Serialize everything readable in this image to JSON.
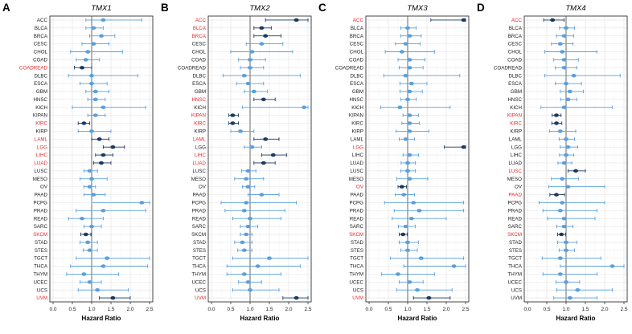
{
  "figure": {
    "xlabel": "Hazard Ratio",
    "x_ticks": [
      0.0,
      0.5,
      1.0,
      1.5,
      2.0,
      2.5
    ],
    "xlim": [
      0,
      2.5
    ],
    "ref_line": 1.0,
    "colors": {
      "nonsig_point": "#58a0e0",
      "sig_point": "#1c3a5e",
      "sig_label": "#e8262a",
      "label": "#1a1a1a",
      "grid_major": "#e4e4e4",
      "grid_minor": "#f3f3f3",
      "ref_line": "#5a5a5a",
      "frame": "#333333"
    }
  },
  "chart_data": [
    {
      "type": "forest",
      "panel": "A",
      "title": "TMX1",
      "xlabel": "Hazard Ratio",
      "xlim": [
        0,
        2.5
      ],
      "categories": [
        "ACC",
        "BLCA",
        "BRCA",
        "CESC",
        "CHOL",
        "COAD",
        "COADREAD",
        "DLBC",
        "ESCA",
        "GBM",
        "HNSC",
        "KICH",
        "KIPAN",
        "KIRC",
        "KIRP",
        "LAML",
        "LGG",
        "LIHC",
        "LUAD",
        "LUSC",
        "MESO",
        "OV",
        "PAAD",
        "PCPG",
        "PRAD",
        "READ",
        "SARC",
        "SKCM",
        "STAD",
        "STES",
        "TGCT",
        "THCA",
        "THYM",
        "UCEC",
        "UCS",
        "UVM"
      ],
      "estimates": [
        1.3,
        1.05,
        1.25,
        1.05,
        0.9,
        0.85,
        0.75,
        1.0,
        1.0,
        1.1,
        1.1,
        1.3,
        1.1,
        0.8,
        1.0,
        1.2,
        1.55,
        1.3,
        1.25,
        0.95,
        1.0,
        0.95,
        1.05,
        2.3,
        1.3,
        0.75,
        1.0,
        0.85,
        0.9,
        0.95,
        1.4,
        1.3,
        0.8,
        0.95,
        1.15,
        1.55
      ],
      "ci_low": [
        0.85,
        0.85,
        0.95,
        0.75,
        0.45,
        0.6,
        0.55,
        0.4,
        0.7,
        0.85,
        0.9,
        0.5,
        0.9,
        0.65,
        0.65,
        1.0,
        1.3,
        1.1,
        1.05,
        0.8,
        0.7,
        0.8,
        0.8,
        1.0,
        0.6,
        0.4,
        0.8,
        0.72,
        0.7,
        0.78,
        0.6,
        0.45,
        0.35,
        0.7,
        0.65,
        1.2
      ],
      "ci_high": [
        2.3,
        1.3,
        1.6,
        1.45,
        1.8,
        1.2,
        1.0,
        2.2,
        1.4,
        1.45,
        1.35,
        2.4,
        1.35,
        0.95,
        1.5,
        1.45,
        1.85,
        1.55,
        1.5,
        1.15,
        1.4,
        1.1,
        1.35,
        2.5,
        2.4,
        1.3,
        1.25,
        0.98,
        1.15,
        1.15,
        2.5,
        2.45,
        1.7,
        1.25,
        1.95,
        2.0
      ],
      "significant": [
        "COADREAD",
        "KIRC",
        "LAML",
        "LGG",
        "LIHC",
        "LUAD",
        "SKCM",
        "UVM"
      ]
    },
    {
      "type": "forest",
      "panel": "B",
      "title": "TMX2",
      "xlabel": "Hazard Ratio",
      "xlim": [
        0,
        2.5
      ],
      "categories": [
        "ACC",
        "BLCA",
        "BRCA",
        "CESC",
        "CHOL",
        "COAD",
        "COADREAD",
        "DLBC",
        "ESCA",
        "GBM",
        "HNSC",
        "KICH",
        "KIPAN",
        "KIRC",
        "KIRP",
        "LAML",
        "LGG",
        "LIHC",
        "LUAD",
        "LUSC",
        "MESO",
        "OV",
        "PAAD",
        "PCPG",
        "PRAD",
        "READ",
        "SARC",
        "SKCM",
        "STAD",
        "STES",
        "TGCT",
        "THCA",
        "THYM",
        "UCEC",
        "UCS",
        "UVM"
      ],
      "estimates": [
        2.2,
        1.3,
        1.4,
        1.3,
        1.05,
        1.0,
        1.0,
        0.85,
        0.95,
        1.1,
        1.35,
        2.4,
        0.55,
        0.55,
        0.75,
        1.4,
        1.05,
        1.6,
        1.35,
        0.95,
        0.9,
        0.95,
        1.3,
        0.9,
        0.85,
        1.0,
        0.95,
        0.9,
        0.8,
        0.85,
        1.5,
        1.2,
        0.85,
        0.95,
        1.0,
        2.2
      ],
      "ci_low": [
        1.4,
        1.1,
        1.1,
        0.9,
        0.5,
        0.7,
        0.75,
        0.3,
        0.65,
        0.85,
        1.1,
        0.8,
        0.45,
        0.45,
        0.5,
        1.1,
        0.85,
        1.3,
        1.1,
        0.78,
        0.6,
        0.8,
        0.95,
        0.25,
        0.35,
        0.55,
        0.75,
        0.75,
        0.6,
        0.68,
        0.55,
        0.4,
        0.4,
        0.7,
        0.55,
        1.85
      ],
      "ci_high": [
        2.5,
        1.55,
        1.8,
        1.85,
        2.1,
        1.4,
        1.35,
        2.3,
        1.35,
        1.45,
        1.65,
        2.5,
        0.7,
        0.7,
        1.1,
        1.75,
        1.3,
        1.95,
        1.65,
        1.15,
        1.35,
        1.12,
        1.75,
        2.2,
        1.9,
        1.8,
        1.2,
        1.05,
        1.05,
        1.05,
        2.5,
        2.3,
        1.8,
        1.3,
        1.75,
        2.5
      ],
      "significant": [
        "ACC",
        "BLCA",
        "BRCA",
        "HNSC",
        "KIPAN",
        "KIRC",
        "LAML",
        "LIHC",
        "LUAD",
        "UVM"
      ]
    },
    {
      "type": "forest",
      "panel": "C",
      "title": "TMX3",
      "xlabel": "Hazard Ratio",
      "xlim": [
        0,
        2.5
      ],
      "categories": [
        "ACC",
        "BLCA",
        "BRCA",
        "CESC",
        "CHOL",
        "COAD",
        "COADREAD",
        "DLBC",
        "ESCA",
        "GBM",
        "HNSC",
        "KICH",
        "KIPAN",
        "KIRC",
        "KIRP",
        "LAML",
        "LGG",
        "LIHC",
        "LUAD",
        "LUSC",
        "MESO",
        "OV",
        "PAAD",
        "PCPG",
        "PRAD",
        "READ",
        "SARC",
        "SKCM",
        "STAD",
        "STES",
        "TGCT",
        "THCA",
        "THYM",
        "UCEC",
        "UCS",
        "UVM"
      ],
      "estimates": [
        2.45,
        1.0,
        1.05,
        0.95,
        0.85,
        1.05,
        1.05,
        0.95,
        1.1,
        1.05,
        1.0,
        0.8,
        1.05,
        1.05,
        1.05,
        0.95,
        2.45,
        1.05,
        1.0,
        1.0,
        1.05,
        0.85,
        0.9,
        1.15,
        1.3,
        1.1,
        0.95,
        0.88,
        1.0,
        1.0,
        1.35,
        2.2,
        0.75,
        1.05,
        1.25,
        1.55
      ],
      "ci_low": [
        1.6,
        0.82,
        0.82,
        0.68,
        0.42,
        0.75,
        0.78,
        0.38,
        0.8,
        0.8,
        0.82,
        0.3,
        0.88,
        0.85,
        0.7,
        0.78,
        1.95,
        0.88,
        0.83,
        0.82,
        0.72,
        0.75,
        0.68,
        0.4,
        0.65,
        0.6,
        0.76,
        0.78,
        0.78,
        0.82,
        0.55,
        0.9,
        0.32,
        0.78,
        0.72,
        1.15
      ],
      "ci_high": [
        2.5,
        1.22,
        1.35,
        1.32,
        1.7,
        1.45,
        1.4,
        2.35,
        1.5,
        1.38,
        1.22,
        2.1,
        1.28,
        1.3,
        1.55,
        1.18,
        2.5,
        1.28,
        1.2,
        1.2,
        1.52,
        0.97,
        1.18,
        2.45,
        2.45,
        2.0,
        1.2,
        0.99,
        1.28,
        1.25,
        2.45,
        2.5,
        1.7,
        1.4,
        2.15,
        2.1
      ],
      "significant": [
        "ACC",
        "LGG",
        "OV",
        "SKCM",
        "UVM"
      ]
    },
    {
      "type": "forest",
      "panel": "D",
      "title": "TMX4",
      "xlabel": "Hazard Ratio",
      "xlim": [
        0,
        2.5
      ],
      "categories": [
        "ACC",
        "BLCA",
        "BRCA",
        "CESC",
        "CHOL",
        "COAD",
        "COADREAD",
        "DLBC",
        "ESCA",
        "GBM",
        "HNSC",
        "KICH",
        "KIPAN",
        "KIRC",
        "KIRP",
        "LAML",
        "LGG",
        "LIHC",
        "LUAD",
        "LUSC",
        "MESO",
        "OV",
        "PAAD",
        "PCPG",
        "PRAD",
        "READ",
        "SARC",
        "SKCM",
        "STAD",
        "STES",
        "TGCT",
        "THCA",
        "THYM",
        "UCEC",
        "UCS",
        "UVM"
      ],
      "estimates": [
        0.65,
        1.0,
        0.95,
        0.85,
        0.9,
        0.95,
        0.95,
        1.2,
        1.0,
        1.1,
        1.05,
        0.95,
        0.75,
        0.75,
        0.85,
        1.0,
        1.05,
        1.0,
        0.95,
        1.25,
        0.9,
        1.05,
        0.75,
        0.9,
        0.85,
        0.95,
        0.95,
        0.88,
        1.0,
        1.0,
        0.85,
        2.2,
        0.85,
        1.0,
        1.3,
        1.1
      ],
      "ci_low": [
        0.42,
        0.83,
        0.75,
        0.62,
        0.45,
        0.68,
        0.72,
        0.45,
        0.72,
        0.85,
        0.86,
        0.35,
        0.64,
        0.63,
        0.57,
        0.82,
        0.85,
        0.83,
        0.79,
        1.05,
        0.62,
        0.55,
        0.58,
        0.3,
        0.4,
        0.52,
        0.76,
        0.78,
        0.78,
        0.82,
        0.38,
        0.85,
        0.4,
        0.74,
        0.76,
        0.68
      ],
      "ci_high": [
        0.95,
        1.22,
        1.2,
        1.18,
        1.8,
        1.32,
        1.28,
        2.4,
        1.4,
        1.45,
        1.28,
        2.2,
        0.87,
        0.89,
        1.25,
        1.22,
        1.3,
        1.2,
        1.15,
        1.5,
        1.32,
        2.0,
        0.96,
        2.0,
        1.8,
        1.75,
        1.18,
        0.99,
        1.28,
        1.22,
        1.9,
        2.5,
        1.8,
        1.35,
        2.2,
        1.8
      ],
      "significant": [
        "ACC",
        "KIPAN",
        "KIRC",
        "LUSC",
        "PAAD",
        "SKCM"
      ]
    }
  ]
}
